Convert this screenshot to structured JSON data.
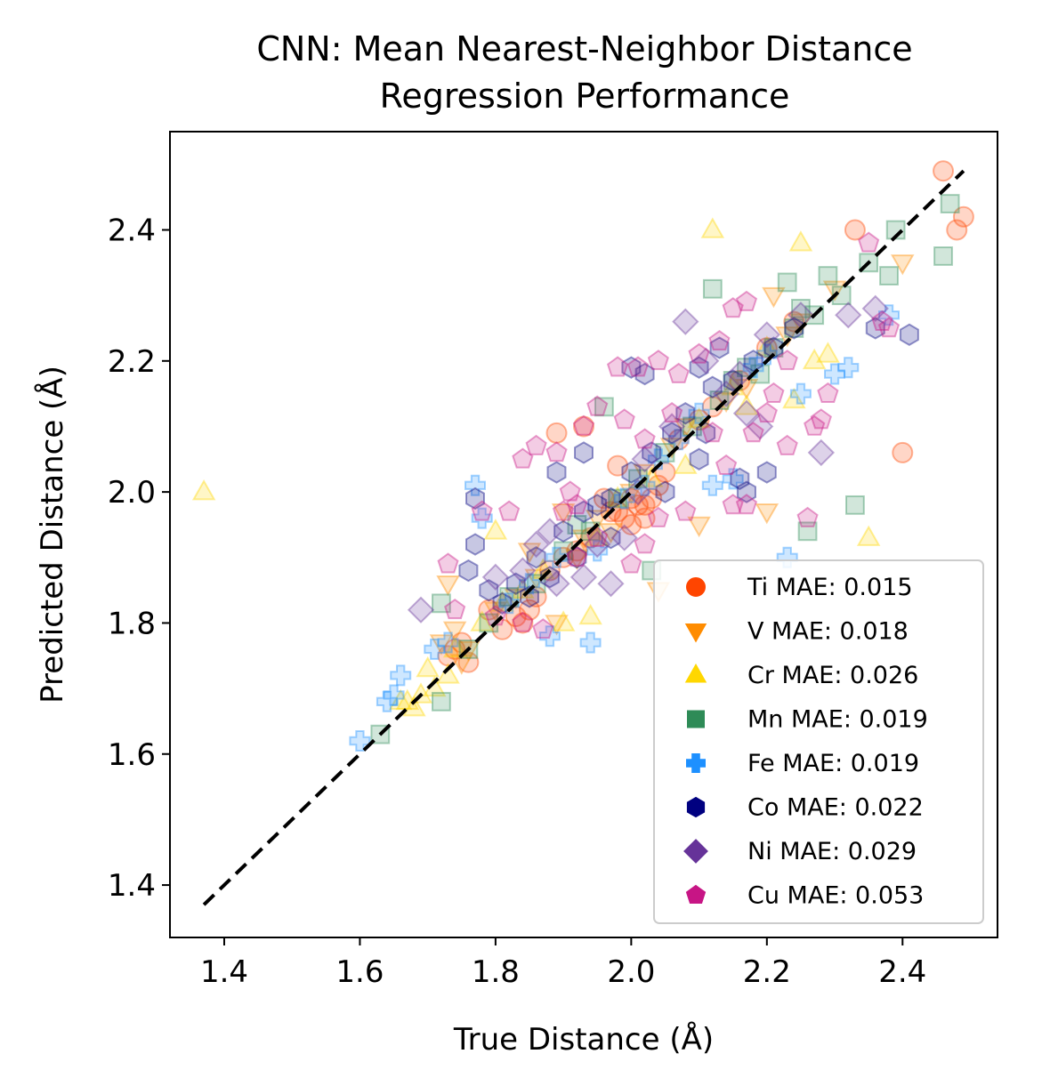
{
  "chart_data": {
    "type": "scatter",
    "title": [
      "CNN: Mean Nearest-Neighbor Distance",
      "Regression Performance"
    ],
    "xlabel": "True Distance (Å)",
    "ylabel": "Predicted Distance (Å)",
    "xlim": [
      1.32,
      2.54
    ],
    "ylim": [
      1.32,
      2.55
    ],
    "xticks": [
      1.4,
      1.6,
      1.8,
      2.0,
      2.2,
      2.4
    ],
    "yticks": [
      1.4,
      1.6,
      1.8,
      2.0,
      2.2,
      2.4
    ],
    "xtick_labels": [
      "1.4",
      "1.6",
      "1.8",
      "2.0",
      "2.2",
      "2.4"
    ],
    "ytick_labels": [
      "1.4",
      "1.6",
      "1.8",
      "2.0",
      "2.2",
      "2.4"
    ],
    "grid": false,
    "legend_position": "lower-right",
    "reference_line": {
      "style": "dashed",
      "color": "#000000",
      "from": [
        1.37,
        1.37
      ],
      "to": [
        2.49,
        2.49
      ]
    },
    "series": [
      {
        "name": "Ti MAE: 0.015",
        "marker": "circle",
        "color": "#ff4500",
        "points": [
          [
            2.46,
            2.49
          ],
          [
            2.49,
            2.42
          ],
          [
            2.48,
            2.4
          ],
          [
            2.33,
            2.4
          ],
          [
            2.4,
            2.06
          ],
          [
            1.89,
            2.09
          ],
          [
            1.93,
            2.1
          ],
          [
            1.98,
            2.04
          ],
          [
            2.0,
            1.99
          ],
          [
            2.01,
            1.98
          ],
          [
            2.02,
            1.98
          ],
          [
            2.03,
            1.99
          ],
          [
            1.99,
            1.96
          ],
          [
            2.0,
            1.95
          ],
          [
            1.97,
            1.97
          ],
          [
            2.04,
            2.01
          ],
          [
            1.83,
            1.81
          ],
          [
            1.85,
            1.82
          ],
          [
            1.84,
            1.8
          ],
          [
            1.86,
            1.84
          ],
          [
            1.74,
            1.76
          ],
          [
            1.75,
            1.77
          ],
          [
            1.73,
            1.75
          ],
          [
            1.76,
            1.74
          ],
          [
            1.92,
            1.91
          ],
          [
            1.94,
            1.93
          ],
          [
            2.02,
            1.96
          ],
          [
            2.05,
            2.03
          ],
          [
            1.98,
            1.97
          ],
          [
            1.96,
            1.99
          ],
          [
            2.24,
            2.26
          ],
          [
            2.2,
            2.22
          ],
          [
            2.1,
            2.11
          ],
          [
            2.12,
            2.13
          ],
          [
            2.16,
            2.17
          ],
          [
            1.88,
            1.88
          ],
          [
            1.9,
            1.9
          ],
          [
            1.81,
            1.79
          ],
          [
            1.79,
            1.82
          ],
          [
            2.07,
            2.08
          ]
        ]
      },
      {
        "name": "V MAE: 0.018",
        "marker": "triangle-down",
        "color": "#ff8c00",
        "points": [
          [
            2.4,
            2.35
          ],
          [
            2.3,
            2.31
          ],
          [
            2.21,
            2.3
          ],
          [
            2.2,
            1.97
          ],
          [
            2.1,
            1.95
          ],
          [
            2.04,
            1.85
          ],
          [
            1.93,
            1.93
          ],
          [
            1.92,
            1.9
          ],
          [
            1.89,
            1.8
          ],
          [
            1.73,
            1.86
          ],
          [
            1.74,
            1.79
          ],
          [
            1.72,
            1.77
          ],
          [
            1.76,
            1.76
          ],
          [
            1.75,
            1.74
          ],
          [
            1.8,
            1.82
          ],
          [
            1.83,
            1.84
          ],
          [
            1.95,
            1.96
          ],
          [
            1.97,
            1.94
          ],
          [
            2.0,
            2.0
          ],
          [
            2.02,
            2.03
          ],
          [
            2.06,
            2.07
          ],
          [
            2.08,
            2.1
          ],
          [
            2.14,
            2.14
          ],
          [
            2.17,
            2.16
          ],
          [
            2.23,
            2.24
          ],
          [
            2.25,
            2.26
          ],
          [
            1.86,
            1.87
          ],
          [
            1.9,
            1.97
          ],
          [
            1.85,
            1.91
          ]
        ]
      },
      {
        "name": "Cr MAE: 0.026",
        "marker": "triangle-up",
        "color": "#ffd700",
        "points": [
          [
            1.37,
            2.0
          ],
          [
            2.12,
            2.4
          ],
          [
            2.25,
            2.38
          ],
          [
            2.35,
            1.93
          ],
          [
            2.27,
            2.2
          ],
          [
            2.29,
            2.21
          ],
          [
            2.24,
            2.14
          ],
          [
            2.17,
            2.13
          ],
          [
            2.08,
            2.04
          ],
          [
            1.94,
            1.81
          ],
          [
            1.9,
            1.8
          ],
          [
            1.8,
            1.94
          ],
          [
            1.73,
            1.72
          ],
          [
            1.71,
            1.7
          ],
          [
            1.67,
            1.68
          ],
          [
            1.68,
            1.67
          ],
          [
            1.66,
            1.68
          ],
          [
            1.69,
            1.69
          ],
          [
            1.7,
            1.73
          ],
          [
            1.74,
            1.76
          ],
          [
            1.78,
            1.8
          ],
          [
            1.81,
            1.83
          ],
          [
            1.84,
            1.85
          ],
          [
            1.95,
            1.93
          ],
          [
            1.98,
            1.99
          ],
          [
            2.03,
            2.02
          ],
          [
            2.1,
            2.11
          ],
          [
            2.15,
            2.16
          ],
          [
            2.2,
            2.22
          ],
          [
            1.87,
            1.88
          ]
        ]
      },
      {
        "name": "Mn MAE: 0.019",
        "marker": "square",
        "color": "#2e8b57",
        "points": [
          [
            2.47,
            2.44
          ],
          [
            2.46,
            2.36
          ],
          [
            2.39,
            2.4
          ],
          [
            2.38,
            2.33
          ],
          [
            2.35,
            2.35
          ],
          [
            2.31,
            2.3
          ],
          [
            2.29,
            2.33
          ],
          [
            2.12,
            2.31
          ],
          [
            2.25,
            2.28
          ],
          [
            2.33,
            1.98
          ],
          [
            2.26,
            1.94
          ],
          [
            2.23,
            2.32
          ],
          [
            1.96,
            2.13
          ],
          [
            2.03,
            1.88
          ],
          [
            1.72,
            1.83
          ],
          [
            1.72,
            1.68
          ],
          [
            1.63,
            1.63
          ],
          [
            1.76,
            1.76
          ],
          [
            1.79,
            1.8
          ],
          [
            1.82,
            1.84
          ],
          [
            1.86,
            1.86
          ],
          [
            1.9,
            1.91
          ],
          [
            1.94,
            1.94
          ],
          [
            1.98,
            1.99
          ],
          [
            2.01,
            2.02
          ],
          [
            2.05,
            2.06
          ],
          [
            2.09,
            2.1
          ],
          [
            2.13,
            2.14
          ],
          [
            2.17,
            2.19
          ],
          [
            2.21,
            2.22
          ],
          [
            2.24,
            2.25
          ],
          [
            2.27,
            2.27
          ],
          [
            2.19,
            2.18
          ],
          [
            2.15,
            2.17
          ],
          [
            1.92,
            1.95
          ]
        ]
      },
      {
        "name": "Fe MAE: 0.019",
        "marker": "plus",
        "color": "#1e90ff",
        "points": [
          [
            2.3,
            2.18
          ],
          [
            2.32,
            2.19
          ],
          [
            2.25,
            2.15
          ],
          [
            2.38,
            2.27
          ],
          [
            2.23,
            1.9
          ],
          [
            2.12,
            2.01
          ],
          [
            2.15,
            2.02
          ],
          [
            1.95,
            1.91
          ],
          [
            1.94,
            1.77
          ],
          [
            1.88,
            1.78
          ],
          [
            1.73,
            1.77
          ],
          [
            1.71,
            1.76
          ],
          [
            1.65,
            1.69
          ],
          [
            1.64,
            1.68
          ],
          [
            1.66,
            1.72
          ],
          [
            1.77,
            2.01
          ],
          [
            1.78,
            1.96
          ],
          [
            1.85,
            1.86
          ],
          [
            1.89,
            1.9
          ],
          [
            1.99,
            1.99
          ],
          [
            2.04,
            2.05
          ],
          [
            2.07,
            2.08
          ],
          [
            2.1,
            2.12
          ],
          [
            2.18,
            2.19
          ],
          [
            2.2,
            2.21
          ],
          [
            1.82,
            1.83
          ],
          [
            2.02,
            2.01
          ],
          [
            1.6,
            1.62
          ]
        ]
      },
      {
        "name": "Co MAE: 0.022",
        "marker": "hexagon",
        "color": "#000080",
        "points": [
          [
            2.41,
            2.24
          ],
          [
            2.36,
            2.25
          ],
          [
            2.17,
            2.0
          ],
          [
            2.2,
            2.03
          ],
          [
            2.16,
            2.02
          ],
          [
            2.1,
            2.19
          ],
          [
            2.13,
            2.22
          ],
          [
            2.1,
            2.05
          ],
          [
            2.0,
            2.19
          ],
          [
            2.02,
            2.18
          ],
          [
            1.89,
            2.03
          ],
          [
            1.93,
            2.06
          ],
          [
            1.77,
            1.99
          ],
          [
            1.76,
            1.88
          ],
          [
            1.77,
            1.92
          ],
          [
            1.79,
            1.85
          ],
          [
            1.81,
            1.83
          ],
          [
            1.83,
            1.86
          ],
          [
            1.86,
            1.9
          ],
          [
            1.9,
            1.94
          ],
          [
            1.93,
            1.97
          ],
          [
            1.95,
            1.98
          ],
          [
            1.97,
            1.99
          ],
          [
            2.0,
            2.03
          ],
          [
            2.03,
            2.06
          ],
          [
            2.06,
            2.09
          ],
          [
            2.08,
            2.12
          ],
          [
            2.12,
            2.16
          ],
          [
            2.15,
            2.17
          ],
          [
            2.18,
            2.2
          ],
          [
            2.21,
            2.22
          ],
          [
            2.24,
            2.25
          ],
          [
            1.88,
            1.87
          ],
          [
            1.92,
            1.9
          ],
          [
            2.05,
            2.0
          ],
          [
            2.11,
            2.09
          ],
          [
            1.97,
            1.93
          ],
          [
            1.85,
            1.84
          ]
        ]
      },
      {
        "name": "Ni MAE: 0.029",
        "marker": "diamond",
        "color": "#663399",
        "points": [
          [
            2.08,
            2.26
          ],
          [
            2.28,
            2.06
          ],
          [
            2.16,
            2.18
          ],
          [
            1.69,
            1.82
          ],
          [
            1.89,
            1.86
          ],
          [
            1.93,
            1.87
          ],
          [
            1.97,
            1.86
          ],
          [
            1.95,
            1.92
          ],
          [
            1.99,
            1.93
          ],
          [
            2.06,
            2.1
          ],
          [
            2.11,
            2.2
          ],
          [
            2.14,
            2.15
          ],
          [
            2.2,
            2.24
          ],
          [
            2.25,
            2.27
          ],
          [
            2.32,
            2.27
          ],
          [
            2.36,
            2.28
          ],
          [
            1.8,
            1.87
          ],
          [
            1.84,
            1.88
          ],
          [
            1.88,
            1.94
          ],
          [
            2.02,
            2.05
          ],
          [
            2.17,
            2.12
          ],
          [
            2.19,
            2.1
          ],
          [
            2.01,
            2.0
          ],
          [
            1.86,
            1.92
          ]
        ]
      },
      {
        "name": "Cu MAE: 0.053",
        "marker": "pentagon",
        "color": "#c71585",
        "points": [
          [
            2.35,
            2.38
          ],
          [
            2.37,
            2.26
          ],
          [
            2.38,
            2.25
          ],
          [
            2.29,
            2.15
          ],
          [
            2.28,
            2.11
          ],
          [
            2.27,
            2.1
          ],
          [
            2.23,
            2.07
          ],
          [
            2.26,
            1.96
          ],
          [
            2.17,
            1.98
          ],
          [
            2.13,
            2.23
          ],
          [
            2.15,
            2.28
          ],
          [
            2.17,
            2.29
          ],
          [
            2.1,
            2.21
          ],
          [
            2.07,
            2.18
          ],
          [
            2.04,
            2.2
          ],
          [
            2.01,
            2.19
          ],
          [
            1.98,
            2.19
          ],
          [
            1.99,
            2.11
          ],
          [
            1.95,
            2.13
          ],
          [
            1.93,
            2.1
          ],
          [
            1.89,
            2.06
          ],
          [
            1.86,
            2.07
          ],
          [
            1.84,
            2.05
          ],
          [
            1.82,
            1.97
          ],
          [
            1.78,
            1.97
          ],
          [
            1.73,
            1.89
          ],
          [
            1.74,
            1.82
          ],
          [
            1.8,
            1.81
          ],
          [
            1.84,
            1.8
          ],
          [
            1.87,
            1.79
          ],
          [
            1.92,
            1.9
          ],
          [
            1.95,
            1.93
          ],
          [
            2.0,
            1.89
          ],
          [
            2.04,
            1.96
          ],
          [
            2.08,
            1.97
          ],
          [
            2.12,
            2.09
          ],
          [
            2.18,
            2.09
          ],
          [
            2.2,
            2.12
          ],
          [
            2.23,
            2.2
          ],
          [
            1.9,
            1.97
          ],
          [
            1.92,
            1.98
          ],
          [
            2.02,
            2.08
          ],
          [
            2.06,
            2.12
          ],
          [
            2.14,
            2.04
          ],
          [
            2.15,
            1.98
          ],
          [
            1.91,
            2.0
          ],
          [
            2.21,
            2.15
          ],
          [
            2.02,
            1.92
          ]
        ]
      }
    ]
  }
}
